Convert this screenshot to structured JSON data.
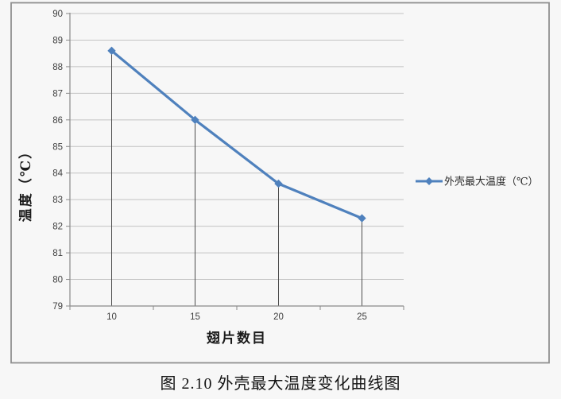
{
  "page": {
    "caption": "图 2.10  外壳最大温度变化曲线图"
  },
  "chart_data": {
    "type": "line",
    "title": "",
    "xlabel": "翅片数目",
    "ylabel": "温度（℃）",
    "categories": [
      "10",
      "15",
      "20",
      "25"
    ],
    "series": [
      {
        "name": "外壳最大温度（℃）",
        "values": [
          88.6,
          86.0,
          83.6,
          82.3
        ]
      }
    ],
    "ylim": [
      79,
      90
    ],
    "y_tick_step": 1,
    "grid": "horizontal",
    "legend_position": "right",
    "drop_lines": true,
    "marker": "diamond",
    "colors": {
      "series": "#4f81bd",
      "gridline": "#c3c3c3",
      "axis": "#8a8a8a",
      "tick": "#8a8a8a",
      "drop_line": "#4d4d4d",
      "frame_border": "#8f8f8f",
      "frame_fill": "#f7f7f7",
      "page_bg": "#f7f7f7"
    }
  }
}
